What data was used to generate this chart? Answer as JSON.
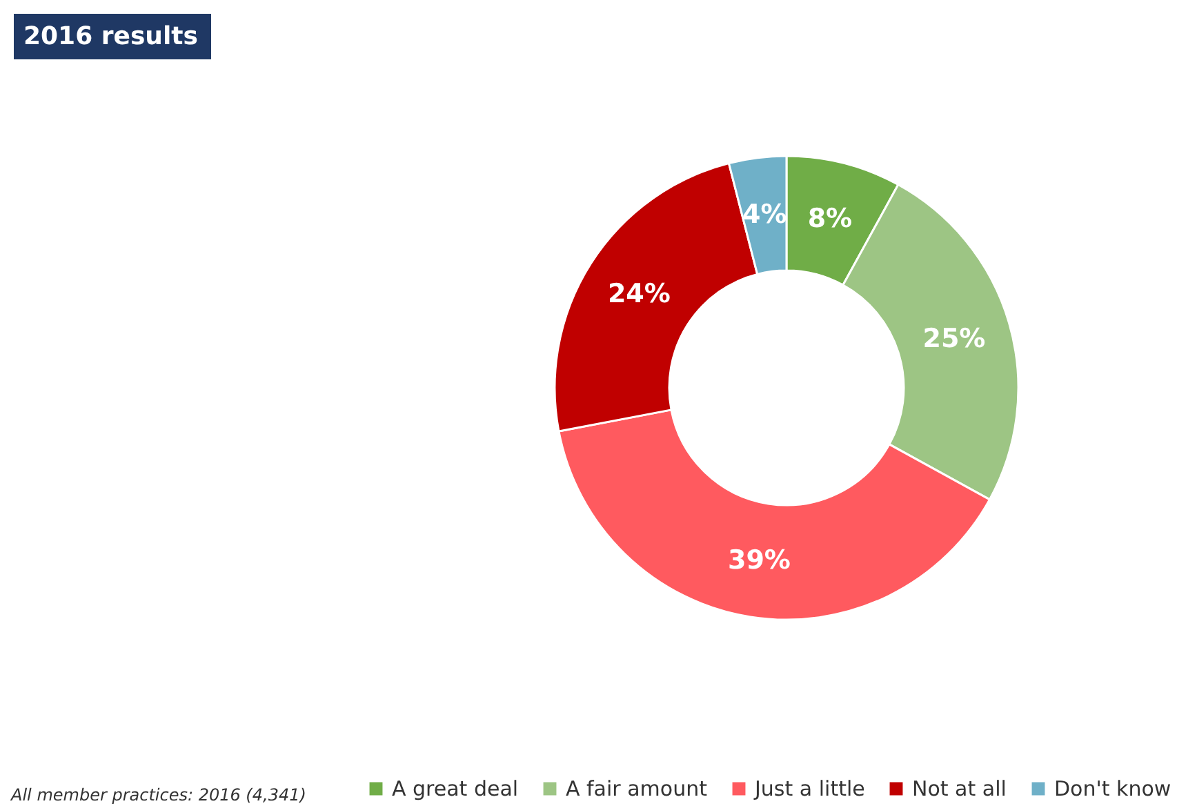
{
  "chart_data": {
    "type": "donut",
    "title": "2016 results",
    "categories": [
      "A great deal",
      "A fair amount",
      "Just a little",
      "Not at all",
      "Don't know"
    ],
    "values": [
      8,
      25,
      39,
      24,
      4
    ],
    "colors": [
      "#70ad47",
      "#9dc584",
      "#ff5a5f",
      "#c00000",
      "#6fb0c8"
    ],
    "value_labels": [
      "8%",
      "25%",
      "39%",
      "24%",
      "4%"
    ],
    "legend": "bottom right",
    "annotations": [
      "All member practices: 2016 (4,341)"
    ]
  }
}
